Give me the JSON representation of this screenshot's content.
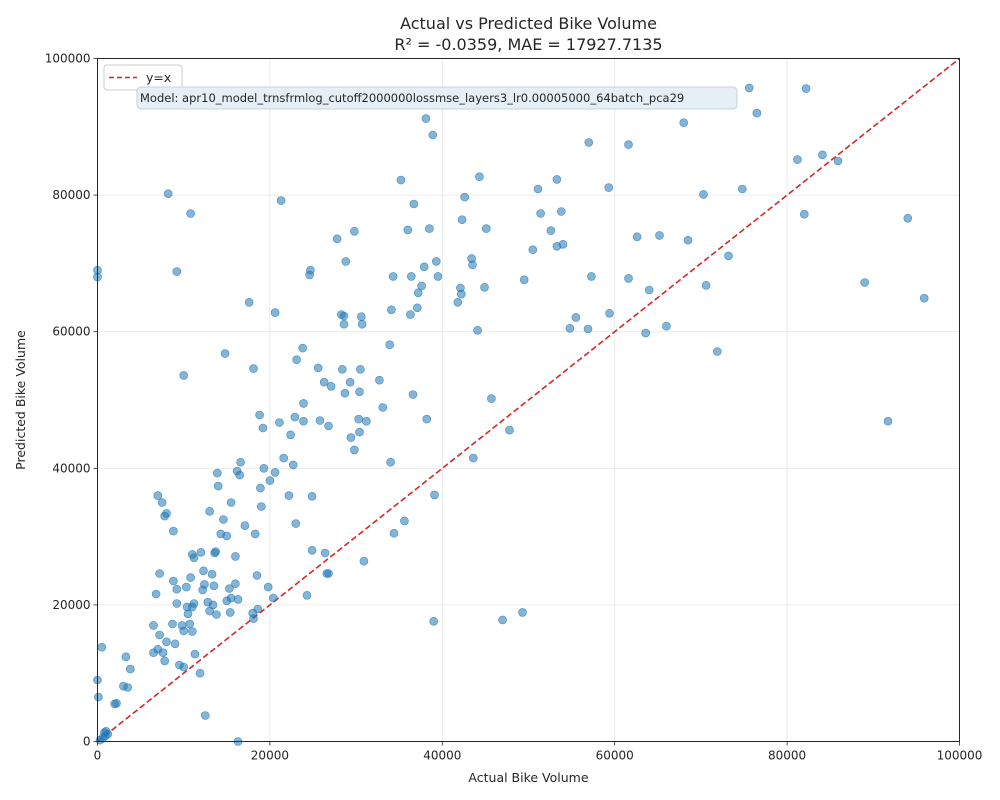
{
  "chart_data": {
    "type": "scatter",
    "title": "Actual vs Predicted Bike Volume",
    "subtitle": "R² = -0.0359, MAE = 17927.7135",
    "xlabel": "Actual Bike Volume",
    "ylabel": "Predicted Bike Volume",
    "xlim": [
      0,
      100000
    ],
    "ylim": [
      0,
      100000
    ],
    "xticks": [
      0,
      20000,
      40000,
      60000,
      80000,
      100000
    ],
    "yticks": [
      0,
      20000,
      40000,
      60000,
      80000,
      100000
    ],
    "grid": true,
    "legend": {
      "position": "top-left",
      "entries": [
        {
          "label": "y=x",
          "color": "#d62728",
          "style": "dashed"
        }
      ]
    },
    "annotation": "Model: apr10_model_trnsfrmlog_cutoff2000000lossmse_layers3_lr0.00005000_64batch_pca29",
    "point_color": "#1f77b4",
    "reference_line": {
      "label": "y=x",
      "color": "#d62728",
      "from": [
        0,
        0
      ],
      "to": [
        100000,
        100000
      ]
    },
    "points": [
      [
        0,
        69000
      ],
      [
        0,
        68000
      ],
      [
        0,
        9000
      ],
      [
        100,
        6500
      ],
      [
        500,
        13800
      ],
      [
        1000,
        1500
      ],
      [
        900,
        800
      ],
      [
        600,
        500
      ],
      [
        300,
        200
      ],
      [
        1200,
        1100
      ],
      [
        800,
        1300
      ],
      [
        2000,
        5500
      ],
      [
        2200,
        5600
      ],
      [
        3000,
        8100
      ],
      [
        3300,
        12400
      ],
      [
        3500,
        7900
      ],
      [
        3800,
        10600
      ],
      [
        6500,
        13000
      ],
      [
        6500,
        17000
      ],
      [
        6800,
        21600
      ],
      [
        7000,
        13500
      ],
      [
        7200,
        15600
      ],
      [
        7200,
        24600
      ],
      [
        7000,
        36000
      ],
      [
        7500,
        35000
      ],
      [
        7800,
        11800
      ],
      [
        7600,
        13000
      ],
      [
        8000,
        14600
      ],
      [
        7800,
        33000
      ],
      [
        8000,
        33400
      ],
      [
        8200,
        80200
      ],
      [
        8700,
        17200
      ],
      [
        8800,
        23500
      ],
      [
        8800,
        30800
      ],
      [
        9000,
        14300
      ],
      [
        9200,
        68800
      ],
      [
        9200,
        20200
      ],
      [
        9200,
        22300
      ],
      [
        9500,
        11200
      ],
      [
        9800,
        17000
      ],
      [
        10000,
        53600
      ],
      [
        10000,
        16200
      ],
      [
        10000,
        10900
      ],
      [
        10300,
        22600
      ],
      [
        10500,
        18700
      ],
      [
        10400,
        19700
      ],
      [
        10700,
        17200
      ],
      [
        10800,
        77300
      ],
      [
        10800,
        24000
      ],
      [
        11000,
        16100
      ],
      [
        11000,
        27400
      ],
      [
        11200,
        26900
      ],
      [
        11200,
        20200
      ],
      [
        11300,
        12800
      ],
      [
        11000,
        19700
      ],
      [
        11900,
        10000
      ],
      [
        12000,
        27700
      ],
      [
        12200,
        22200
      ],
      [
        12300,
        25000
      ],
      [
        12400,
        23000
      ],
      [
        12500,
        3800
      ],
      [
        12800,
        20400
      ],
      [
        13000,
        33700
      ],
      [
        13000,
        19100
      ],
      [
        13300,
        24500
      ],
      [
        13400,
        20000
      ],
      [
        13500,
        22800
      ],
      [
        13600,
        27600
      ],
      [
        13700,
        27800
      ],
      [
        13800,
        18600
      ],
      [
        13900,
        39300
      ],
      [
        14000,
        37400
      ],
      [
        14300,
        30400
      ],
      [
        14600,
        32500
      ],
      [
        14800,
        56800
      ],
      [
        15000,
        30100
      ],
      [
        15000,
        20600
      ],
      [
        15300,
        22400
      ],
      [
        15500,
        35000
      ],
      [
        15400,
        18900
      ],
      [
        15500,
        21000
      ],
      [
        16000,
        23100
      ],
      [
        16000,
        27100
      ],
      [
        16200,
        39600
      ],
      [
        16300,
        0
      ],
      [
        16300,
        20800
      ],
      [
        16500,
        39000
      ],
      [
        16600,
        40900
      ],
      [
        17100,
        31600
      ],
      [
        17600,
        64300
      ],
      [
        18000,
        18800
      ],
      [
        18100,
        18000
      ],
      [
        18100,
        54600
      ],
      [
        18300,
        30400
      ],
      [
        18500,
        24300
      ],
      [
        18600,
        19400
      ],
      [
        18800,
        47800
      ],
      [
        18900,
        37100
      ],
      [
        19000,
        34400
      ],
      [
        19200,
        45900
      ],
      [
        19300,
        40000
      ],
      [
        19800,
        22600
      ],
      [
        20000,
        38200
      ],
      [
        20400,
        21000
      ],
      [
        20600,
        39400
      ],
      [
        20600,
        62800
      ],
      [
        21100,
        46700
      ],
      [
        21300,
        79200
      ],
      [
        21600,
        41500
      ],
      [
        22200,
        36000
      ],
      [
        22400,
        44900
      ],
      [
        22700,
        40500
      ],
      [
        22900,
        47500
      ],
      [
        23000,
        31900
      ],
      [
        23100,
        55900
      ],
      [
        23800,
        57600
      ],
      [
        23900,
        49500
      ],
      [
        23900,
        46900
      ],
      [
        24300,
        21400
      ],
      [
        24600,
        68300
      ],
      [
        24700,
        69000
      ],
      [
        24900,
        35900
      ],
      [
        24900,
        28000
      ],
      [
        25600,
        54700
      ],
      [
        25800,
        47000
      ],
      [
        26300,
        52600
      ],
      [
        26400,
        27600
      ],
      [
        26600,
        24600
      ],
      [
        26800,
        24600
      ],
      [
        26800,
        46200
      ],
      [
        27100,
        52000
      ],
      [
        27800,
        73600
      ],
      [
        28300,
        62500
      ],
      [
        28400,
        54500
      ],
      [
        28600,
        62300
      ],
      [
        28600,
        61100
      ],
      [
        28800,
        70300
      ],
      [
        28700,
        51000
      ],
      [
        29300,
        52600
      ],
      [
        29400,
        44500
      ],
      [
        29800,
        42700
      ],
      [
        29800,
        74700
      ],
      [
        30300,
        47200
      ],
      [
        30400,
        45300
      ],
      [
        30400,
        51200
      ],
      [
        30500,
        54500
      ],
      [
        30600,
        62200
      ],
      [
        30700,
        61100
      ],
      [
        30900,
        26400
      ],
      [
        31200,
        46900
      ],
      [
        32700,
        52900
      ],
      [
        33100,
        48900
      ],
      [
        33900,
        58100
      ],
      [
        34000,
        40900
      ],
      [
        34100,
        63200
      ],
      [
        34300,
        68100
      ],
      [
        34400,
        30500
      ],
      [
        35200,
        82200
      ],
      [
        35600,
        32300
      ],
      [
        36000,
        74900
      ],
      [
        36300,
        62500
      ],
      [
        36400,
        68100
      ],
      [
        36600,
        50800
      ],
      [
        36700,
        78700
      ],
      [
        37100,
        63500
      ],
      [
        37200,
        65700
      ],
      [
        37600,
        66700
      ],
      [
        37900,
        69500
      ],
      [
        38100,
        91200
      ],
      [
        38200,
        47200
      ],
      [
        38500,
        75100
      ],
      [
        38900,
        88800
      ],
      [
        39100,
        36100
      ],
      [
        39000,
        17600
      ],
      [
        39300,
        70300
      ],
      [
        39500,
        68100
      ],
      [
        41800,
        64300
      ],
      [
        42100,
        66400
      ],
      [
        42200,
        65500
      ],
      [
        42300,
        76400
      ],
      [
        42600,
        79700
      ],
      [
        43400,
        70700
      ],
      [
        43500,
        69800
      ],
      [
        43600,
        41500
      ],
      [
        44100,
        60200
      ],
      [
        44300,
        82700
      ],
      [
        44900,
        66500
      ],
      [
        45100,
        75100
      ],
      [
        45700,
        50200
      ],
      [
        47000,
        17800
      ],
      [
        47800,
        45600
      ],
      [
        49300,
        18900
      ],
      [
        49500,
        67600
      ],
      [
        50500,
        72000
      ],
      [
        51100,
        80900
      ],
      [
        51400,
        77300
      ],
      [
        52600,
        74800
      ],
      [
        53300,
        72500
      ],
      [
        53300,
        82300
      ],
      [
        53800,
        77600
      ],
      [
        54000,
        72800
      ],
      [
        54800,
        60500
      ],
      [
        55500,
        62100
      ],
      [
        56900,
        60400
      ],
      [
        57000,
        87700
      ],
      [
        57300,
        68100
      ],
      [
        59300,
        81100
      ],
      [
        59400,
        62700
      ],
      [
        61600,
        87400
      ],
      [
        61600,
        67800
      ],
      [
        62600,
        73900
      ],
      [
        63600,
        59800
      ],
      [
        64000,
        66100
      ],
      [
        65200,
        74100
      ],
      [
        66000,
        60800
      ],
      [
        68000,
        90600
      ],
      [
        68500,
        73400
      ],
      [
        70300,
        80100
      ],
      [
        70600,
        66800
      ],
      [
        71900,
        57100
      ],
      [
        73200,
        71100
      ],
      [
        74800,
        80900
      ],
      [
        75600,
        95700
      ],
      [
        76500,
        92000
      ],
      [
        81200,
        85200
      ],
      [
        82000,
        77200
      ],
      [
        82200,
        95600
      ],
      [
        84100,
        85900
      ],
      [
        85900,
        85000
      ],
      [
        89000,
        67200
      ],
      [
        91700,
        46900
      ],
      [
        94000,
        76600
      ],
      [
        95900,
        64900
      ]
    ]
  }
}
